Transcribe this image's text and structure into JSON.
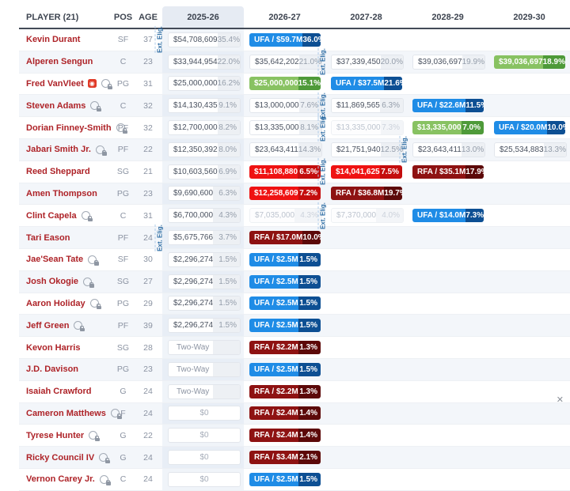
{
  "table": {
    "columns": [
      "PLAYER (21)",
      "POS",
      "AGE",
      "2025-26",
      "2026-27",
      "2027-28",
      "2028-29",
      "2029-30"
    ],
    "ext_label": "Ext. Elig.",
    "colors": {
      "ufa_badge": "#1f8ce6",
      "ufa_pct": "#0d4f93",
      "rfa_badge": "#8e1212",
      "rfa_pct": "#5c0909",
      "team_option_badge": "#ef1212",
      "team_option_pct": "#c40d0d",
      "player_option_badge": "#88c262",
      "player_option_pct": "#4e9a39",
      "player_name": "#ae2328",
      "ext_label_color": "#2e6da4"
    },
    "players": [
      {
        "name": "Kevin Durant",
        "pos": "SF",
        "age": "37",
        "icons": [],
        "seasons": [
          {
            "t": "val",
            "v": "$54,708,609",
            "p": "35.4%",
            "ext": true
          },
          {
            "t": "ufa",
            "v": "UFA / $59.7M",
            "p": "36.0%"
          },
          null,
          null,
          null
        ]
      },
      {
        "name": "Alperen Sengun",
        "pos": "C",
        "age": "23",
        "icons": [],
        "seasons": [
          {
            "t": "val",
            "v": "$33,944,954",
            "p": "22.0%"
          },
          {
            "t": "val",
            "v": "$35,642,202",
            "p": "21.0%"
          },
          {
            "t": "val",
            "v": "$37,339,450",
            "p": "20.0%",
            "ext": true
          },
          {
            "t": "val",
            "v": "$39,036,697",
            "p": "19.9%"
          },
          {
            "t": "green",
            "v": "$39,036,697",
            "p": "18.9%"
          }
        ]
      },
      {
        "name": "Fred VanVleet",
        "pos": "PG",
        "age": "31",
        "icons": [
          "option",
          "lock"
        ],
        "seasons": [
          {
            "t": "val",
            "v": "$25,000,000",
            "p": "16.2%"
          },
          {
            "t": "green",
            "v": "$25,000,000",
            "p": "15.1%"
          },
          {
            "t": "ufa",
            "v": "UFA / $37.5M",
            "p": "21.6%"
          },
          null,
          null
        ]
      },
      {
        "name": "Steven Adams",
        "pos": "C",
        "age": "32",
        "icons": [
          "lock"
        ],
        "seasons": [
          {
            "t": "val",
            "v": "$14,130,435",
            "p": "9.1%"
          },
          {
            "t": "val",
            "v": "$13,000,000",
            "p": "7.6%"
          },
          {
            "t": "val",
            "v": "$11,869,565",
            "p": "6.3%",
            "ext": true
          },
          {
            "t": "ufa",
            "v": "UFA / $22.6M",
            "p": "11.5%"
          },
          null
        ]
      },
      {
        "name": "Dorian Finney-Smith",
        "pos": "PF",
        "age": "32",
        "icons": [
          "lock"
        ],
        "seasons": [
          {
            "t": "val",
            "v": "$12,700,000",
            "p": "8.2%"
          },
          {
            "t": "val",
            "v": "$13,335,000",
            "p": "8.1%"
          },
          {
            "t": "muted",
            "v": "$13,335,000",
            "p": "7.3%",
            "ext": true
          },
          {
            "t": "green",
            "v": "$13,335,000",
            "p": "7.0%"
          },
          {
            "t": "ufa",
            "v": "UFA / $20.0M",
            "p": "10.0%"
          }
        ]
      },
      {
        "name": "Jabari Smith Jr.",
        "pos": "PF",
        "age": "22",
        "icons": [
          "lock"
        ],
        "seasons": [
          {
            "t": "val",
            "v": "$12,350,392",
            "p": "8.0%"
          },
          {
            "t": "val",
            "v": "$23,643,411",
            "p": "14.3%"
          },
          {
            "t": "val",
            "v": "$21,751,940",
            "p": "12.5%"
          },
          {
            "t": "val",
            "v": "$23,643,411",
            "p": "13.0%",
            "ext": true
          },
          {
            "t": "val",
            "v": "$25,534,883",
            "p": "13.3%"
          }
        ]
      },
      {
        "name": "Reed Sheppard",
        "pos": "SG",
        "age": "21",
        "icons": [],
        "seasons": [
          {
            "t": "val",
            "v": "$10,603,560",
            "p": "6.9%"
          },
          {
            "t": "red",
            "v": "$11,108,880",
            "p": "6.5%"
          },
          {
            "t": "red",
            "v": "$14,041,625",
            "p": "7.5%",
            "ext": true
          },
          {
            "t": "rfa",
            "v": "RFA / $35.1M",
            "p": "17.9%"
          },
          null
        ]
      },
      {
        "name": "Amen Thompson",
        "pos": "PG",
        "age": "23",
        "icons": [],
        "seasons": [
          {
            "t": "val",
            "v": "$9,690,600",
            "p": "6.3%"
          },
          {
            "t": "red",
            "v": "$12,258,609",
            "p": "7.2%"
          },
          {
            "t": "rfa",
            "v": "RFA / $36.8M",
            "p": "19.7%"
          },
          null,
          null
        ]
      },
      {
        "name": "Clint Capela",
        "pos": "C",
        "age": "31",
        "icons": [
          "lock"
        ],
        "seasons": [
          {
            "t": "val",
            "v": "$6,700,000",
            "p": "4.3%"
          },
          {
            "t": "muted",
            "v": "$7,035,000",
            "p": "4.3%"
          },
          {
            "t": "muted",
            "v": "$7,370,000",
            "p": "4.0%",
            "ext": true
          },
          {
            "t": "ufa",
            "v": "UFA / $14.0M",
            "p": "7.3%"
          },
          null
        ]
      },
      {
        "name": "Tari Eason",
        "pos": "PF",
        "age": "24",
        "icons": [],
        "seasons": [
          {
            "t": "val",
            "v": "$5,675,766",
            "p": "3.7%",
            "ext": true
          },
          {
            "t": "rfa",
            "v": "RFA / $17.0M",
            "p": "10.0%"
          },
          null,
          null,
          null
        ]
      },
      {
        "name": "Jae'Sean Tate",
        "pos": "SF",
        "age": "30",
        "icons": [
          "lock"
        ],
        "seasons": [
          {
            "t": "val",
            "v": "$2,296,274",
            "p": "1.5%"
          },
          {
            "t": "ufa",
            "v": "UFA / $2.5M",
            "p": "1.5%"
          },
          null,
          null,
          null
        ]
      },
      {
        "name": "Josh Okogie",
        "pos": "SG",
        "age": "27",
        "icons": [
          "lock"
        ],
        "seasons": [
          {
            "t": "val",
            "v": "$2,296,274",
            "p": "1.5%"
          },
          {
            "t": "ufa",
            "v": "UFA / $2.5M",
            "p": "1.5%"
          },
          null,
          null,
          null
        ]
      },
      {
        "name": "Aaron Holiday",
        "pos": "PG",
        "age": "29",
        "icons": [
          "lock"
        ],
        "seasons": [
          {
            "t": "val",
            "v": "$2,296,274",
            "p": "1.5%"
          },
          {
            "t": "ufa",
            "v": "UFA / $2.5M",
            "p": "1.5%"
          },
          null,
          null,
          null
        ]
      },
      {
        "name": "Jeff Green",
        "pos": "PF",
        "age": "39",
        "icons": [
          "lock"
        ],
        "seasons": [
          {
            "t": "val",
            "v": "$2,296,274",
            "p": "1.5%"
          },
          {
            "t": "ufa",
            "v": "UFA / $2.5M",
            "p": "1.5%"
          },
          null,
          null,
          null
        ]
      },
      {
        "name": "Kevon Harris",
        "pos": "SG",
        "age": "28",
        "icons": [],
        "seasons": [
          {
            "t": "two",
            "v": "Two-Way",
            "p": ""
          },
          {
            "t": "rfa",
            "v": "RFA / $2.2M",
            "p": "1.3%"
          },
          null,
          null,
          null
        ]
      },
      {
        "name": "J.D. Davison",
        "pos": "PG",
        "age": "23",
        "icons": [],
        "seasons": [
          {
            "t": "two",
            "v": "Two-Way",
            "p": ""
          },
          {
            "t": "ufa",
            "v": "UFA / $2.5M",
            "p": "1.5%"
          },
          null,
          null,
          null
        ]
      },
      {
        "name": "Isaiah Crawford",
        "pos": "G",
        "age": "24",
        "icons": [],
        "seasons": [
          {
            "t": "two",
            "v": "Two-Way",
            "p": ""
          },
          {
            "t": "rfa",
            "v": "RFA / $2.2M",
            "p": "1.3%"
          },
          null,
          null,
          null
        ]
      },
      {
        "name": "Cameron Matthews",
        "pos": "F",
        "age": "24",
        "icons": [
          "lock"
        ],
        "seasons": [
          {
            "t": "zero",
            "v": "$0",
            "p": ""
          },
          {
            "t": "rfa",
            "v": "RFA / $2.4M",
            "p": "1.4%"
          },
          null,
          null,
          null
        ]
      },
      {
        "name": "Tyrese Hunter",
        "pos": "G",
        "age": "22",
        "icons": [
          "lock"
        ],
        "seasons": [
          {
            "t": "zero",
            "v": "$0",
            "p": ""
          },
          {
            "t": "rfa",
            "v": "RFA / $2.4M",
            "p": "1.4%"
          },
          null,
          null,
          null
        ]
      },
      {
        "name": "Ricky Council IV",
        "pos": "G",
        "age": "24",
        "icons": [
          "lock"
        ],
        "seasons": [
          {
            "t": "zero",
            "v": "$0",
            "p": ""
          },
          {
            "t": "rfa",
            "v": "RFA / $3.4M",
            "p": "2.1%"
          },
          null,
          null,
          null
        ]
      },
      {
        "name": "Vernon Carey Jr.",
        "pos": "C",
        "age": "24",
        "icons": [
          "lock"
        ],
        "seasons": [
          {
            "t": "zero",
            "v": "$0",
            "p": ""
          },
          {
            "t": "ufa",
            "v": "UFA / $2.5M",
            "p": "1.5%"
          },
          null,
          null,
          null
        ]
      }
    ]
  },
  "overlay": {
    "close_label": "✕",
    "option_icon_glyph": "◉"
  }
}
